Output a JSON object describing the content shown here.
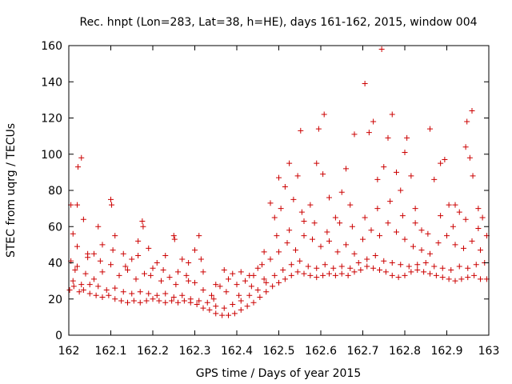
{
  "chart_data": {
    "type": "scatter",
    "title": "Rec. hnpt (Lon=283, Lat=38, h=HE), days 161-162, 2015, window 004",
    "xlabel": "GPS time / Days of year 2015",
    "ylabel": "STEC from uqrg / TECUs",
    "xlim": [
      162,
      163
    ],
    "ylim": [
      0,
      160
    ],
    "xticks": [
      162,
      162.1,
      162.2,
      162.3,
      162.4,
      162.5,
      162.6,
      162.7,
      162.8,
      162.9,
      163
    ],
    "xtick_labels": [
      "162",
      "162.1",
      "162.2",
      "162.3",
      "162.4",
      "162.5",
      "162.6",
      "162.7",
      "162.8",
      "162.9",
      "163"
    ],
    "yticks": [
      0,
      20,
      40,
      60,
      80,
      100,
      120,
      140,
      160
    ],
    "ytick_labels": [
      "0",
      "20",
      "40",
      "60",
      "80",
      "100",
      "120",
      "140",
      "160"
    ],
    "grid": false,
    "marker": "+",
    "color": "#cc0000",
    "series": [
      {
        "points": [
          [
            162.005,
            72
          ],
          [
            162.01,
            56
          ],
          [
            162.015,
            36
          ],
          [
            162.02,
            72
          ],
          [
            162.022,
            93
          ],
          [
            162.03,
            98
          ],
          [
            162.035,
            64
          ],
          [
            162.045,
            45
          ],
          [
            162.06,
            45
          ],
          [
            162.07,
            60
          ],
          [
            162.08,
            50
          ],
          [
            162.1,
            75
          ],
          [
            162.102,
            72
          ],
          [
            162.11,
            55
          ],
          [
            162.13,
            45
          ],
          [
            162.15,
            42
          ],
          [
            162.165,
            52
          ],
          [
            162.175,
            63
          ],
          [
            162.177,
            60
          ],
          [
            162.19,
            48
          ],
          [
            162.21,
            40
          ],
          [
            162.23,
            44
          ],
          [
            162.25,
            55
          ],
          [
            162.252,
            53
          ],
          [
            162.27,
            42
          ],
          [
            162.285,
            40
          ],
          [
            162.3,
            47
          ],
          [
            162.31,
            55
          ],
          [
            162.32,
            35
          ],
          [
            162.35,
            28
          ],
          [
            162.37,
            36
          ],
          [
            162.39,
            34
          ],
          [
            162.41,
            35
          ],
          [
            162.43,
            33
          ],
          [
            162.45,
            37
          ],
          [
            162.465,
            46
          ],
          [
            162.48,
            73
          ],
          [
            162.49,
            65
          ],
          [
            162.5,
            87
          ],
          [
            162.505,
            70
          ],
          [
            162.515,
            82
          ],
          [
            162.525,
            95
          ],
          [
            162.535,
            75
          ],
          [
            162.545,
            88
          ],
          [
            162.552,
            113
          ],
          [
            162.56,
            63
          ],
          [
            162.575,
            72
          ],
          [
            162.59,
            95
          ],
          [
            162.595,
            114
          ],
          [
            162.605,
            89
          ],
          [
            162.608,
            122
          ],
          [
            162.62,
            76
          ],
          [
            162.635,
            65
          ],
          [
            162.65,
            79
          ],
          [
            162.66,
            92
          ],
          [
            162.67,
            72
          ],
          [
            162.68,
            111
          ],
          [
            162.705,
            139
          ],
          [
            162.715,
            112
          ],
          [
            162.725,
            118
          ],
          [
            162.735,
            86
          ],
          [
            162.745,
            158
          ],
          [
            162.75,
            93
          ],
          [
            162.76,
            109
          ],
          [
            162.77,
            122
          ],
          [
            162.78,
            90
          ],
          [
            162.79,
            80
          ],
          [
            162.8,
            101
          ],
          [
            162.805,
            109
          ],
          [
            162.815,
            88
          ],
          [
            162.825,
            70
          ],
          [
            162.84,
            58
          ],
          [
            162.86,
            114
          ],
          [
            162.87,
            86
          ],
          [
            162.885,
            95
          ],
          [
            162.895,
            97
          ],
          [
            162.905,
            72
          ],
          [
            162.92,
            72
          ],
          [
            162.93,
            68
          ],
          [
            162.945,
            104
          ],
          [
            162.948,
            118
          ],
          [
            162.955,
            98
          ],
          [
            162.96,
            124
          ],
          [
            162.962,
            88
          ],
          [
            162.975,
            70
          ],
          [
            162.985,
            65
          ],
          [
            162.995,
            55
          ],
          [
            162.005,
            41
          ],
          [
            162.02,
            38
          ],
          [
            162.04,
            34
          ],
          [
            162.06,
            31
          ],
          [
            162.08,
            35
          ],
          [
            162.1,
            39
          ],
          [
            162.12,
            33
          ],
          [
            162.14,
            36
          ],
          [
            162.16,
            31
          ],
          [
            162.18,
            34
          ],
          [
            162.2,
            37
          ],
          [
            162.22,
            30
          ],
          [
            162.24,
            32
          ],
          [
            162.26,
            35
          ],
          [
            162.28,
            33
          ],
          [
            162.3,
            29
          ],
          [
            162.32,
            25
          ],
          [
            162.34,
            22
          ],
          [
            162.36,
            27
          ],
          [
            162.38,
            31
          ],
          [
            162.4,
            28
          ],
          [
            162.42,
            30
          ],
          [
            162.44,
            33
          ],
          [
            162.46,
            39
          ],
          [
            162.48,
            42
          ],
          [
            162.5,
            46
          ],
          [
            162.52,
            51
          ],
          [
            162.54,
            47
          ],
          [
            162.56,
            55
          ],
          [
            162.58,
            53
          ],
          [
            162.6,
            49
          ],
          [
            162.62,
            52
          ],
          [
            162.64,
            46
          ],
          [
            162.66,
            50
          ],
          [
            162.68,
            45
          ],
          [
            162.7,
            53
          ],
          [
            162.72,
            58
          ],
          [
            162.74,
            55
          ],
          [
            162.76,
            62
          ],
          [
            162.78,
            57
          ],
          [
            162.8,
            53
          ],
          [
            162.82,
            49
          ],
          [
            162.84,
            47
          ],
          [
            162.86,
            45
          ],
          [
            162.88,
            51
          ],
          [
            162.9,
            55
          ],
          [
            162.92,
            50
          ],
          [
            162.94,
            48
          ],
          [
            162.96,
            52
          ],
          [
            162.98,
            47
          ],
          [
            162.002,
            25
          ],
          [
            162.012,
            27
          ],
          [
            162.025,
            24
          ],
          [
            162.035,
            25
          ],
          [
            162.05,
            23
          ],
          [
            162.065,
            22
          ],
          [
            162.08,
            21
          ],
          [
            162.095,
            22
          ],
          [
            162.11,
            20
          ],
          [
            162.125,
            19
          ],
          [
            162.14,
            18
          ],
          [
            162.155,
            19
          ],
          [
            162.17,
            18
          ],
          [
            162.185,
            19
          ],
          [
            162.2,
            20
          ],
          [
            162.215,
            19
          ],
          [
            162.23,
            18
          ],
          [
            162.245,
            19
          ],
          [
            162.26,
            18
          ],
          [
            162.275,
            19
          ],
          [
            162.29,
            18
          ],
          [
            162.305,
            17
          ],
          [
            162.32,
            15
          ],
          [
            162.335,
            14
          ],
          [
            162.35,
            12
          ],
          [
            162.365,
            11
          ],
          [
            162.38,
            11
          ],
          [
            162.395,
            12
          ],
          [
            162.41,
            14
          ],
          [
            162.425,
            16
          ],
          [
            162.44,
            18
          ],
          [
            162.455,
            21
          ],
          [
            162.47,
            24
          ],
          [
            162.485,
            27
          ],
          [
            162.5,
            29
          ],
          [
            162.515,
            31
          ],
          [
            162.53,
            33
          ],
          [
            162.545,
            35
          ],
          [
            162.56,
            34
          ],
          [
            162.575,
            33
          ],
          [
            162.59,
            32
          ],
          [
            162.605,
            33
          ],
          [
            162.62,
            34
          ],
          [
            162.635,
            33
          ],
          [
            162.65,
            34
          ],
          [
            162.665,
            33
          ],
          [
            162.68,
            35
          ],
          [
            162.695,
            36
          ],
          [
            162.71,
            38
          ],
          [
            162.725,
            37
          ],
          [
            162.74,
            36
          ],
          [
            162.755,
            35
          ],
          [
            162.77,
            33
          ],
          [
            162.785,
            32
          ],
          [
            162.8,
            33
          ],
          [
            162.815,
            35
          ],
          [
            162.83,
            36
          ],
          [
            162.845,
            35
          ],
          [
            162.86,
            34
          ],
          [
            162.875,
            33
          ],
          [
            162.89,
            32
          ],
          [
            162.905,
            31
          ],
          [
            162.92,
            30
          ],
          [
            162.935,
            31
          ],
          [
            162.95,
            32
          ],
          [
            162.965,
            33
          ],
          [
            162.98,
            31
          ],
          [
            162.995,
            31
          ],
          [
            162.01,
            30
          ],
          [
            162.03,
            28
          ],
          [
            162.05,
            28
          ],
          [
            162.07,
            27
          ],
          [
            162.09,
            25
          ],
          [
            162.11,
            26
          ],
          [
            162.13,
            24
          ],
          [
            162.15,
            23
          ],
          [
            162.17,
            24
          ],
          [
            162.19,
            23
          ],
          [
            162.21,
            22
          ],
          [
            162.23,
            23
          ],
          [
            162.25,
            21
          ],
          [
            162.27,
            22
          ],
          [
            162.29,
            20
          ],
          [
            162.31,
            19
          ],
          [
            162.33,
            18
          ],
          [
            162.35,
            16
          ],
          [
            162.37,
            15
          ],
          [
            162.39,
            17
          ],
          [
            162.41,
            19
          ],
          [
            162.43,
            22
          ],
          [
            162.45,
            25
          ],
          [
            162.47,
            29
          ],
          [
            162.49,
            33
          ],
          [
            162.51,
            36
          ],
          [
            162.53,
            39
          ],
          [
            162.55,
            41
          ],
          [
            162.57,
            38
          ],
          [
            162.59,
            37
          ],
          [
            162.61,
            39
          ],
          [
            162.63,
            37
          ],
          [
            162.65,
            38
          ],
          [
            162.67,
            37
          ],
          [
            162.69,
            40
          ],
          [
            162.71,
            42
          ],
          [
            162.73,
            44
          ],
          [
            162.75,
            41
          ],
          [
            162.77,
            40
          ],
          [
            162.79,
            39
          ],
          [
            162.81,
            38
          ],
          [
            162.83,
            39
          ],
          [
            162.85,
            40
          ],
          [
            162.87,
            38
          ],
          [
            162.89,
            37
          ],
          [
            162.91,
            36
          ],
          [
            162.93,
            38
          ],
          [
            162.95,
            37
          ],
          [
            162.97,
            39
          ],
          [
            162.99,
            40
          ],
          [
            162.02,
            49
          ],
          [
            162.045,
            43
          ],
          [
            162.075,
            41
          ],
          [
            162.105,
            47
          ],
          [
            162.135,
            38
          ],
          [
            162.165,
            44
          ],
          [
            162.195,
            33
          ],
          [
            162.225,
            36
          ],
          [
            162.255,
            28
          ],
          [
            162.285,
            30
          ],
          [
            162.315,
            42
          ],
          [
            162.345,
            20
          ],
          [
            162.375,
            24
          ],
          [
            162.405,
            22
          ],
          [
            162.435,
            27
          ],
          [
            162.465,
            31
          ],
          [
            162.495,
            55
          ],
          [
            162.525,
            58
          ],
          [
            162.555,
            68
          ],
          [
            162.585,
            62
          ],
          [
            162.615,
            57
          ],
          [
            162.645,
            62
          ],
          [
            162.675,
            60
          ],
          [
            162.705,
            65
          ],
          [
            162.735,
            70
          ],
          [
            162.765,
            74
          ],
          [
            162.795,
            66
          ],
          [
            162.825,
            62
          ],
          [
            162.855,
            56
          ],
          [
            162.885,
            66
          ],
          [
            162.915,
            60
          ],
          [
            162.945,
            64
          ],
          [
            162.975,
            59
          ]
        ]
      }
    ]
  }
}
